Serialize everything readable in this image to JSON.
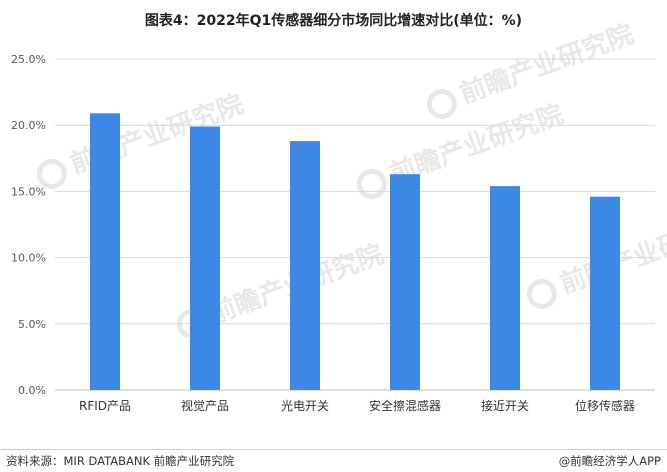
{
  "title": "图表4：2022年Q1传感器细分市场同比增速对比(单位：%)",
  "watermark": "前瞻产业研究院",
  "footer": {
    "source": "资料来源：MIR DATABANK 前瞻产业研究院",
    "brand": "@前瞻经济学人APP"
  },
  "colors": {
    "bar": "#3e87e4",
    "grid": "#d9d9d9",
    "axis": "#bfbfbf",
    "tick": "#595959"
  },
  "chart_data": {
    "type": "bar",
    "title": "图表4：2022年Q1传感器细分市场同比增速对比(单位：%)",
    "categories": [
      "RFID产品",
      "视觉产品",
      "光电开关",
      "安全擦混感器",
      "接近开关",
      "位移传感器"
    ],
    "values": [
      20.9,
      19.9,
      18.8,
      16.3,
      15.4,
      14.6
    ],
    "ylim": [
      0,
      25
    ],
    "yticks": [
      "0.0%",
      "5.0%",
      "10.0%",
      "15.0%",
      "20.0%",
      "25.0%"
    ],
    "grid": true,
    "legend": false
  }
}
